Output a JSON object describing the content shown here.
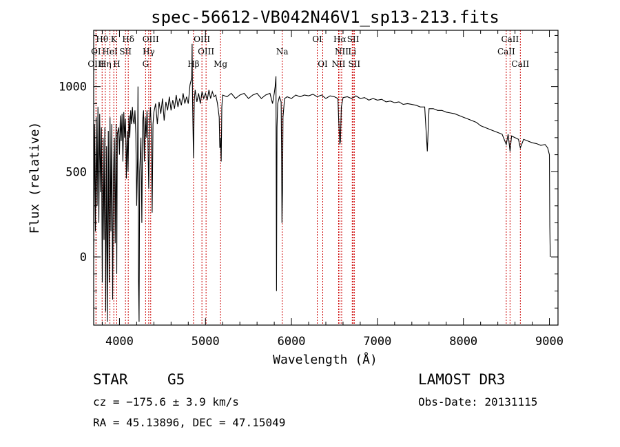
{
  "chart_data": {
    "type": "line",
    "title": "spec-56612-VB042N46V1_sp13-213.fits",
    "xlabel": "Wavelength (Å)",
    "ylabel": "Flux (relative)",
    "xlim": [
      3700,
      9100
    ],
    "ylim": [
      -400,
      1330
    ],
    "x_ticks": [
      4000,
      5000,
      6000,
      7000,
      8000,
      9000
    ],
    "y_ticks": [
      0,
      500,
      1000
    ],
    "colors": {
      "spectrum": "#000000",
      "line_markers": "#cc0000"
    },
    "spectrum": [
      [
        3700,
        0
      ],
      [
        3710,
        780
      ],
      [
        3720,
        150
      ],
      [
        3730,
        820
      ],
      [
        3740,
        300
      ],
      [
        3750,
        880
      ],
      [
        3760,
        200
      ],
      [
        3770,
        840
      ],
      [
        3780,
        380
      ],
      [
        3790,
        760
      ],
      [
        3800,
        -150
      ],
      [
        3810,
        700
      ],
      [
        3820,
        100
      ],
      [
        3830,
        760
      ],
      [
        3840,
        -320
      ],
      [
        3850,
        650
      ],
      [
        3860,
        -380
      ],
      [
        3870,
        740
      ],
      [
        3880,
        -150
      ],
      [
        3890,
        820
      ],
      [
        3900,
        150
      ],
      [
        3910,
        780
      ],
      [
        3920,
        -250
      ],
      [
        3930,
        500
      ],
      [
        3940,
        700
      ],
      [
        3950,
        80
      ],
      [
        3960,
        780
      ],
      [
        3968,
        -100
      ],
      [
        3975,
        720
      ],
      [
        3990,
        760
      ],
      [
        4000,
        600
      ],
      [
        4010,
        830
      ],
      [
        4020,
        680
      ],
      [
        4030,
        840
      ],
      [
        4040,
        560
      ],
      [
        4050,
        850
      ],
      [
        4060,
        700
      ],
      [
        4070,
        810
      ],
      [
        4080,
        460
      ],
      [
        4090,
        740
      ],
      [
        4100,
        500
      ],
      [
        4110,
        830
      ],
      [
        4120,
        700
      ],
      [
        4130,
        860
      ],
      [
        4140,
        780
      ],
      [
        4150,
        880
      ],
      [
        4160,
        800
      ],
      [
        4170,
        780
      ],
      [
        4180,
        860
      ],
      [
        4190,
        720
      ],
      [
        4200,
        300
      ],
      [
        4210,
        580
      ],
      [
        4215,
        1000
      ],
      [
        4220,
        -100
      ],
      [
        4228,
        -380
      ],
      [
        4235,
        500
      ],
      [
        4250,
        700
      ],
      [
        4260,
        200
      ],
      [
        4270,
        800
      ],
      [
        4280,
        860
      ],
      [
        4290,
        560
      ],
      [
        4300,
        820
      ],
      [
        4310,
        700
      ],
      [
        4320,
        860
      ],
      [
        4330,
        720
      ],
      [
        4340,
        400
      ],
      [
        4350,
        780
      ],
      [
        4360,
        880
      ],
      [
        4370,
        750
      ],
      [
        4380,
        260
      ],
      [
        4390,
        780
      ],
      [
        4400,
        850
      ],
      [
        4420,
        900
      ],
      [
        4440,
        780
      ],
      [
        4460,
        910
      ],
      [
        4480,
        840
      ],
      [
        4500,
        930
      ],
      [
        4520,
        800
      ],
      [
        4540,
        910
      ],
      [
        4560,
        860
      ],
      [
        4580,
        940
      ],
      [
        4600,
        860
      ],
      [
        4620,
        920
      ],
      [
        4640,
        870
      ],
      [
        4660,
        950
      ],
      [
        4680,
        880
      ],
      [
        4700,
        930
      ],
      [
        4720,
        890
      ],
      [
        4740,
        960
      ],
      [
        4760,
        900
      ],
      [
        4780,
        940
      ],
      [
        4800,
        900
      ],
      [
        4820,
        1010
      ],
      [
        4840,
        1050
      ],
      [
        4845,
        1250
      ],
      [
        4850,
        920
      ],
      [
        4861,
        580
      ],
      [
        4870,
        920
      ],
      [
        4880,
        980
      ],
      [
        4900,
        910
      ],
      [
        4920,
        960
      ],
      [
        4940,
        900
      ],
      [
        4960,
        970
      ],
      [
        4980,
        930
      ],
      [
        5000,
        960
      ],
      [
        5020,
        920
      ],
      [
        5040,
        980
      ],
      [
        5060,
        930
      ],
      [
        5080,
        970
      ],
      [
        5100,
        940
      ],
      [
        5120,
        950
      ],
      [
        5140,
        900
      ],
      [
        5160,
        820
      ],
      [
        5167,
        640
      ],
      [
        5173,
        700
      ],
      [
        5183,
        560
      ],
      [
        5190,
        880
      ],
      [
        5200,
        950
      ],
      [
        5250,
        940
      ],
      [
        5300,
        960
      ],
      [
        5350,
        930
      ],
      [
        5400,
        950
      ],
      [
        5450,
        960
      ],
      [
        5500,
        930
      ],
      [
        5550,
        950
      ],
      [
        5600,
        960
      ],
      [
        5650,
        930
      ],
      [
        5700,
        950
      ],
      [
        5750,
        960
      ],
      [
        5780,
        900
      ],
      [
        5800,
        960
      ],
      [
        5810,
        1000
      ],
      [
        5820,
        1060
      ],
      [
        5826,
        -200
      ],
      [
        5832,
        760
      ],
      [
        5840,
        900
      ],
      [
        5860,
        940
      ],
      [
        5880,
        910
      ],
      [
        5886,
        600
      ],
      [
        5890,
        200
      ],
      [
        5896,
        380
      ],
      [
        5902,
        820
      ],
      [
        5920,
        930
      ],
      [
        5950,
        940
      ],
      [
        6000,
        930
      ],
      [
        6050,
        950
      ],
      [
        6100,
        940
      ],
      [
        6150,
        950
      ],
      [
        6200,
        945
      ],
      [
        6250,
        955
      ],
      [
        6300,
        940
      ],
      [
        6350,
        950
      ],
      [
        6400,
        930
      ],
      [
        6450,
        945
      ],
      [
        6500,
        940
      ],
      [
        6540,
        930
      ],
      [
        6550,
        800
      ],
      [
        6563,
        660
      ],
      [
        6570,
        680
      ],
      [
        6580,
        880
      ],
      [
        6600,
        935
      ],
      [
        6650,
        940
      ],
      [
        6700,
        930
      ],
      [
        6750,
        945
      ],
      [
        6800,
        930
      ],
      [
        6850,
        935
      ],
      [
        6900,
        920
      ],
      [
        6950,
        930
      ],
      [
        7000,
        920
      ],
      [
        7050,
        925
      ],
      [
        7100,
        910
      ],
      [
        7150,
        915
      ],
      [
        7200,
        905
      ],
      [
        7250,
        910
      ],
      [
        7300,
        895
      ],
      [
        7350,
        900
      ],
      [
        7400,
        895
      ],
      [
        7450,
        890
      ],
      [
        7500,
        880
      ],
      [
        7550,
        880
      ],
      [
        7580,
        620
      ],
      [
        7600,
        870
      ],
      [
        7650,
        870
      ],
      [
        7700,
        860
      ],
      [
        7750,
        860
      ],
      [
        7800,
        850
      ],
      [
        7850,
        845
      ],
      [
        7900,
        840
      ],
      [
        7950,
        830
      ],
      [
        8000,
        820
      ],
      [
        8050,
        810
      ],
      [
        8100,
        800
      ],
      [
        8150,
        790
      ],
      [
        8200,
        770
      ],
      [
        8250,
        760
      ],
      [
        8300,
        750
      ],
      [
        8350,
        740
      ],
      [
        8400,
        730
      ],
      [
        8450,
        720
      ],
      [
        8498,
        660
      ],
      [
        8520,
        720
      ],
      [
        8542,
        620
      ],
      [
        8560,
        710
      ],
      [
        8600,
        700
      ],
      [
        8640,
        690
      ],
      [
        8662,
        640
      ],
      [
        8700,
        690
      ],
      [
        8750,
        680
      ],
      [
        8800,
        670
      ],
      [
        8850,
        665
      ],
      [
        8900,
        655
      ],
      [
        8950,
        660
      ],
      [
        8980,
        640
      ],
      [
        9000,
        600
      ],
      [
        9005,
        180
      ],
      [
        9010,
        0
      ]
    ],
    "line_markers": [
      {
        "name": "Hθ",
        "wl": 3798,
        "row": 0
      },
      {
        "name": "K",
        "wl": 3934,
        "row": 0
      },
      {
        "name": "Hδ",
        "wl": 4102,
        "row": 0
      },
      {
        "name": "OIII",
        "wl": 4363,
        "row": 0
      },
      {
        "name": "OIII",
        "wl": 4959,
        "row": 0
      },
      {
        "name": "OI",
        "wl": 6300,
        "row": 0
      },
      {
        "name": "Hα",
        "wl": 6563,
        "row": 0
      },
      {
        "name": "SII",
        "wl": 6717,
        "row": 0
      },
      {
        "name": "CaII",
        "wl": 8542,
        "row": 0
      },
      {
        "name": "OI",
        "wl": 3727,
        "row": 1
      },
      {
        "name": "HeI",
        "wl": 3889,
        "row": 1
      },
      {
        "name": "SII",
        "wl": 4070,
        "row": 1
      },
      {
        "name": "Hγ",
        "wl": 4340,
        "row": 1
      },
      {
        "name": "OIII",
        "wl": 5007,
        "row": 1
      },
      {
        "name": "Na",
        "wl": 5893,
        "row": 1
      },
      {
        "name": "NII",
        "wl": 6584,
        "row": 1
      },
      {
        "name": "Li",
        "wl": 6707,
        "row": 1
      },
      {
        "name": "CaII",
        "wl": 8498,
        "row": 1
      },
      {
        "name": "OIII",
        "wl": 3727,
        "row": 2
      },
      {
        "name": "Hη",
        "wl": 3835,
        "row": 2
      },
      {
        "name": "H",
        "wl": 3968,
        "row": 2
      },
      {
        "name": "G",
        "wl": 4304,
        "row": 2
      },
      {
        "name": "Hβ",
        "wl": 4861,
        "row": 2
      },
      {
        "name": "Mg",
        "wl": 5175,
        "row": 2
      },
      {
        "name": "OI",
        "wl": 6364,
        "row": 2
      },
      {
        "name": "NII",
        "wl": 6548,
        "row": 2
      },
      {
        "name": "SII",
        "wl": 6731,
        "row": 2
      },
      {
        "name": "CaII",
        "wl": 8662,
        "row": 2
      }
    ]
  },
  "footer": {
    "class_label": "STAR",
    "subclass": "G5",
    "survey": "LAMOST DR3",
    "cz": "cz = −175.6 ± 3.9 km/s",
    "obs_date": "Obs-Date: 20131115",
    "coords": "RA =  45.13896, DEC =  47.15049"
  }
}
